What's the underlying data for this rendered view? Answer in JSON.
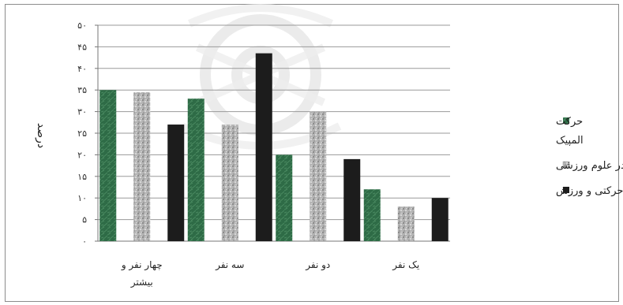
{
  "chart_data": {
    "type": "bar",
    "ylabel": "درصد",
    "ylim": [
      0,
      50
    ],
    "yticks": [
      "۰",
      "۵",
      "۱۰",
      "۱۵",
      "۲۰",
      "۲۵",
      "۳۰",
      "۳۵",
      "۴۰",
      "۴۵",
      "۵۰"
    ],
    "ytick_values": [
      0,
      5,
      10,
      15,
      20,
      25,
      30,
      35,
      40,
      45,
      50
    ],
    "grid": true,
    "legend_position": "right",
    "categories": [
      [
        "چهار نفر و",
        "بیشتر"
      ],
      [
        "سه نفر"
      ],
      [
        "دو نفر"
      ],
      [
        "یک نفر"
      ]
    ],
    "series": [
      {
        "name": "حرکت المپیک",
        "name_lines": [
          "حرکت",
          "المپیک"
        ],
        "color": "#2e6b46",
        "pattern": "green",
        "values": [
          35,
          33,
          20,
          12
        ]
      },
      {
        "name": "پژوهش در علوم ورزشی",
        "name_lines": [
          "پژوهش در علوم ورزشی"
        ],
        "color": "#a8a8a8",
        "pattern": "speckle",
        "values": [
          34.5,
          27,
          30,
          8
        ]
      },
      {
        "name": "علوم حرکتی و ورزش",
        "name_lines": [
          "علوم حرکتی و ورزش"
        ],
        "color": "#1c1c1c",
        "pattern": "solid",
        "values": [
          27,
          43.5,
          19,
          10
        ]
      }
    ]
  }
}
